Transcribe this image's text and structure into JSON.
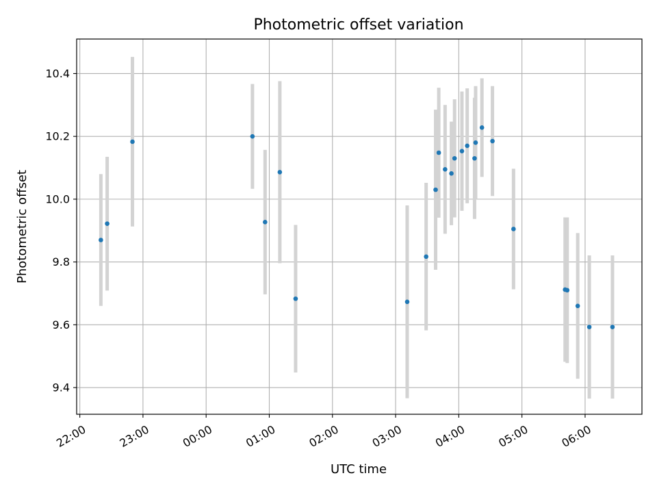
{
  "chart_data": {
    "type": "scatter",
    "title": "Photometric offset variation",
    "xlabel": "UTC time",
    "ylabel": "Photometric offset",
    "x_axis_type": "time",
    "xlim": [
      "21:57",
      "06:54"
    ],
    "ylim": [
      9.315,
      10.51
    ],
    "grid": true,
    "x_ticks": [
      "22:00",
      "23:00",
      "00:00",
      "01:00",
      "02:00",
      "03:00",
      "04:00",
      "05:00",
      "06:00"
    ],
    "y_ticks": [
      "9.4",
      "9.6",
      "9.8",
      "10.0",
      "10.2",
      "10.4"
    ],
    "points": [
      {
        "t": "22:20",
        "y": 9.87,
        "err": 0.21
      },
      {
        "t": "22:26",
        "y": 9.922,
        "err": 0.213
      },
      {
        "t": "22:50",
        "y": 10.183,
        "err": 0.27
      },
      {
        "t": "00:44",
        "y": 10.2,
        "err": 0.167
      },
      {
        "t": "00:56",
        "y": 9.927,
        "err": 0.23
      },
      {
        "t": "01:10",
        "y": 10.086,
        "err": 0.29
      },
      {
        "t": "01:25",
        "y": 9.683,
        "err": 0.235
      },
      {
        "t": "03:11",
        "y": 9.673,
        "err": 0.307
      },
      {
        "t": "03:29",
        "y": 9.817,
        "err": 0.235
      },
      {
        "t": "03:38",
        "y": 10.03,
        "err": 0.255
      },
      {
        "t": "03:41",
        "y": 10.148,
        "err": 0.207
      },
      {
        "t": "03:47",
        "y": 10.095,
        "err": 0.205
      },
      {
        "t": "03:53",
        "y": 10.082,
        "err": 0.165
      },
      {
        "t": "03:56",
        "y": 10.13,
        "err": 0.188
      },
      {
        "t": "04:03",
        "y": 10.153,
        "err": 0.19
      },
      {
        "t": "04:08",
        "y": 10.17,
        "err": 0.183
      },
      {
        "t": "04:15",
        "y": 10.13,
        "err": 0.193
      },
      {
        "t": "04:16",
        "y": 10.18,
        "err": 0.18
      },
      {
        "t": "04:22",
        "y": 10.228,
        "err": 0.157
      },
      {
        "t": "04:32",
        "y": 10.185,
        "err": 0.175
      },
      {
        "t": "04:52",
        "y": 9.905,
        "err": 0.192
      },
      {
        "t": "05:41",
        "y": 9.712,
        "err": 0.23
      },
      {
        "t": "05:43",
        "y": 9.71,
        "err": 0.232
      },
      {
        "t": "05:53",
        "y": 9.66,
        "err": 0.232
      },
      {
        "t": "06:04",
        "y": 9.593,
        "err": 0.228
      },
      {
        "t": "06:26",
        "y": 9.593,
        "err": 0.228
      }
    ],
    "colors": {
      "point": "#1f77b4",
      "errorbar": "#d3d3d3",
      "grid": "#b0b0b0",
      "axes": "#000000"
    }
  }
}
